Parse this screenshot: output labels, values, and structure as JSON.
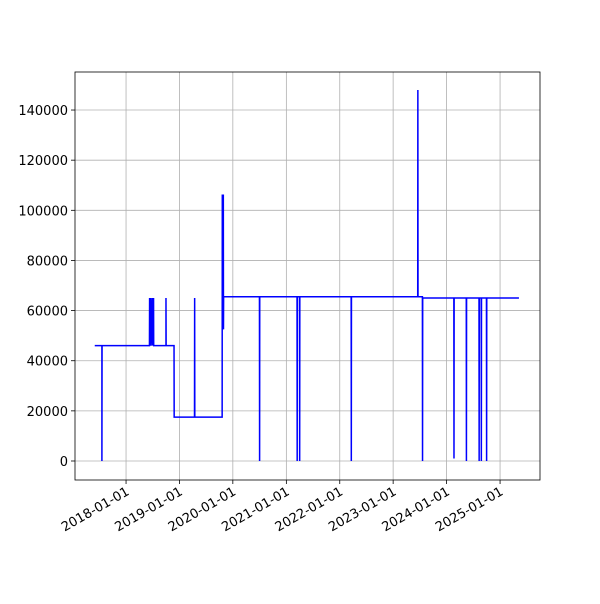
{
  "chart_data": {
    "type": "line",
    "x": [
      "2017-06-01",
      "2017-07-20",
      "2017-07-20",
      "2017-07-21",
      "2018-06-10",
      "2018-06-11",
      "2018-06-12",
      "2018-06-20",
      "2018-06-21",
      "2018-07-01",
      "2018-07-02",
      "2018-07-08",
      "2018-07-09",
      "2018-10-01",
      "2018-10-01",
      "2018-10-02",
      "2018-11-25",
      "2018-11-26",
      "2019-04-14",
      "2019-04-15",
      "2019-04-16",
      "2019-10-20",
      "2019-10-21",
      "2019-10-28",
      "2019-10-29",
      "2019-10-30",
      "2020-07-01",
      "2020-07-02",
      "2020-07-03",
      "2021-03-15",
      "2021-03-16",
      "2021-03-17",
      "2021-04-01",
      "2021-04-02",
      "2021-04-03",
      "2022-03-20",
      "2022-03-21",
      "2022-03-22",
      "2023-06-18",
      "2023-06-19",
      "2023-06-20",
      "2023-07-20",
      "2023-07-21",
      "2023-07-22",
      "2024-02-20",
      "2024-02-21",
      "2024-02-22",
      "2024-05-15",
      "2024-05-16",
      "2024-05-17",
      "2024-08-10",
      "2024-08-11",
      "2024-08-12",
      "2024-08-25",
      "2024-08-26",
      "2024-08-27",
      "2024-09-30",
      "2024-10-01",
      "2024-10-02",
      "2025-05-10"
    ],
    "series": [
      {
        "color": "#0000ff",
        "values": [
          46000,
          46000,
          0,
          46000,
          46000,
          65000,
          46000,
          65000,
          46000,
          65000,
          46000,
          65000,
          46000,
          46000,
          65000,
          46000,
          46000,
          17500,
          17500,
          65000,
          17500,
          17500,
          106000,
          106000,
          52500,
          65500,
          65500,
          0,
          65500,
          65500,
          0,
          65500,
          65500,
          0,
          65500,
          65500,
          0,
          65500,
          65500,
          148000,
          65500,
          65500,
          0,
          65000,
          65000,
          1000,
          65000,
          65000,
          0,
          65000,
          65000,
          0,
          65000,
          65000,
          0,
          65000,
          65000,
          0,
          65000,
          65000
        ]
      }
    ],
    "xlim": [
      "2017-01-17",
      "2025-10-01"
    ],
    "xticks": [
      "2018-01-01",
      "2019-01-01",
      "2020-01-01",
      "2021-01-01",
      "2022-01-01",
      "2023-01-01",
      "2024-01-01",
      "2025-01-01"
    ],
    "ylim": [
      -7580,
      155170
    ],
    "yticks": [
      0,
      20000,
      40000,
      60000,
      80000,
      100000,
      120000,
      140000
    ],
    "grid": true
  }
}
